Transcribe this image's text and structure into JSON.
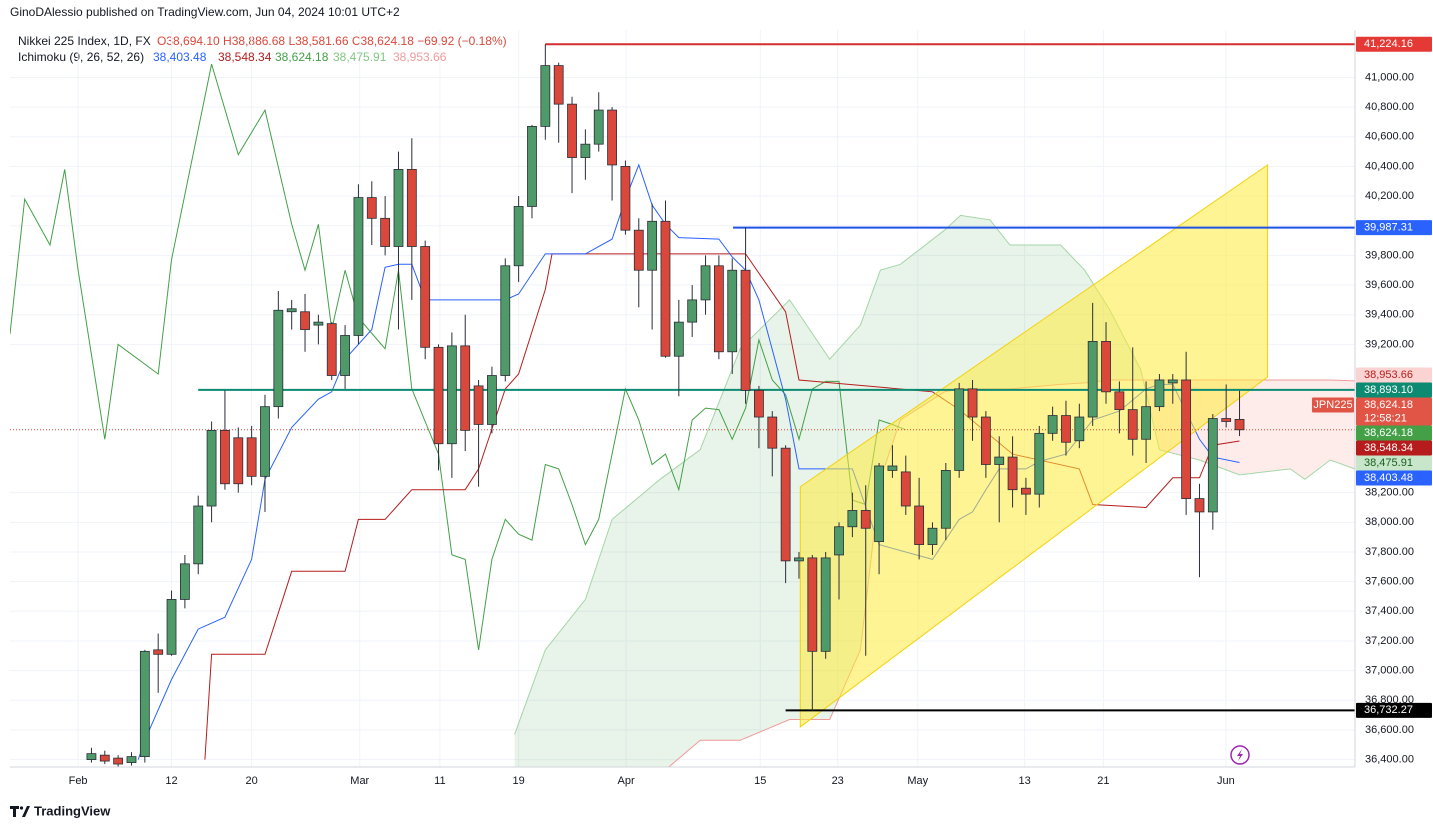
{
  "header": {
    "publisher": "GinoDAlessio published on TradingView.com, Jun 04, 2024 10:01 UTC+2"
  },
  "legend": {
    "symbol": "Nikkei 225 Index, 1D, FX",
    "ohlc": "O38,694.10 H38,886.68 L38,581.66 C38,624.18 −69.92 (−0.18%)",
    "indicator": "Ichimoku (9, 26, 52, 26)",
    "indicator_values": [
      {
        "label": "38,403.48",
        "color": "#2962ff"
      },
      {
        "label": "38,548.34",
        "color": "#b71c1c"
      },
      {
        "label": "38,624.18",
        "color": "#43a047"
      },
      {
        "label": "38,475.91",
        "color": "#81c784"
      },
      {
        "label": "38,953.66",
        "color": "#ef9a9a"
      }
    ]
  },
  "footer": {
    "brand": "TradingView"
  },
  "chart_data": {
    "type": "candlestick",
    "up_color": "#4e9a68",
    "down_color": "#d9483b",
    "grid": true,
    "x": [
      1,
      2,
      3,
      4,
      5,
      6,
      7,
      8,
      9,
      10,
      11,
      12,
      13,
      14,
      15,
      16,
      17,
      18,
      19,
      20,
      21,
      22,
      23,
      24,
      25,
      26,
      27,
      28,
      29,
      30,
      31,
      32,
      33,
      34,
      35,
      36,
      37,
      38,
      39,
      40,
      41,
      42,
      43,
      44,
      45,
      46,
      47,
      48,
      49,
      50,
      51,
      52,
      53,
      54,
      55,
      56,
      57,
      58,
      59,
      60,
      61,
      62,
      63,
      64,
      65,
      66,
      67,
      68,
      69,
      70,
      71,
      72,
      73,
      74,
      75,
      76,
      77,
      78,
      79,
      80,
      81,
      82,
      83,
      84,
      85,
      86,
      87
    ],
    "open": [
      36400,
      36430,
      36410,
      36380,
      36420,
      37140,
      37110,
      37480,
      37720,
      38110,
      38620,
      38570,
      38570,
      38310,
      38780,
      39420,
      39420,
      39330,
      39340,
      38990,
      39260,
      40190,
      40050,
      39860,
      40380,
      39860,
      39180,
      38530,
      39190,
      38920,
      38660,
      38990,
      39730,
      40130,
      40670,
      41080,
      40820,
      40460,
      40550,
      40780,
      40400,
      39970,
      39700,
      40030,
      39120,
      39350,
      39500,
      39730,
      39150,
      39700,
      38890,
      38710,
      38500,
      37740,
      37760,
      37130,
      37780,
      37970,
      38080,
      37870,
      38350,
      38340,
      38110,
      37850,
      37960,
      38350,
      38900,
      38710,
      38390,
      38440,
      38230,
      38190,
      38600,
      38720,
      38550,
      38710,
      39220,
      38880,
      38760,
      38560,
      38780,
      38940,
      38960,
      38160,
      38070,
      38700,
      38694.1
    ],
    "high": [
      36480,
      36460,
      36430,
      36450,
      37140,
      37250,
      37540,
      37780,
      38180,
      38680,
      38890,
      38640,
      38650,
      38860,
      39560,
      39500,
      39540,
      39400,
      39350,
      39330,
      40280,
      40300,
      40200,
      40500,
      40590,
      39900,
      39200,
      39280,
      39400,
      38960,
      39050,
      39780,
      40200,
      40680,
      41224,
      41100,
      40870,
      40650,
      40900,
      40800,
      40440,
      40050,
      40150,
      40170,
      39500,
      39600,
      39800,
      39800,
      39780,
      39990,
      38920,
      38750,
      38520,
      37800,
      37780,
      37800,
      38000,
      38200,
      38250,
      38400,
      38520,
      38450,
      38300,
      38000,
      38400,
      38940,
      38960,
      38750,
      38580,
      38580,
      38300,
      38650,
      38780,
      38820,
      38800,
      39480,
      39350,
      38950,
      39180,
      38950,
      39000,
      39000,
      39150,
      38260,
      38730,
      38930,
      38886.68
    ],
    "low": [
      36380,
      36370,
      36350,
      36360,
      36380,
      36850,
      37100,
      37420,
      37650,
      38000,
      38220,
      38200,
      38250,
      38070,
      38700,
      39300,
      39150,
      39200,
      38960,
      38900,
      39200,
      39870,
      39800,
      39300,
      39500,
      39100,
      38350,
      38300,
      38480,
      38240,
      38600,
      38950,
      39620,
      40050,
      40580,
      40560,
      40220,
      40310,
      40500,
      40170,
      39940,
      39450,
      39300,
      39110,
      38850,
      39250,
      39400,
      39100,
      39000,
      38800,
      38500,
      38310,
      37590,
      37620,
      36730,
      37080,
      37480,
      37900,
      37100,
      37650,
      38300,
      38050,
      37750,
      37780,
      37880,
      38300,
      38550,
      38300,
      38000,
      38100,
      38050,
      38100,
      38550,
      38450,
      38500,
      38650,
      38800,
      38600,
      38450,
      38400,
      38750,
      38800,
      38050,
      37630,
      37950,
      38640,
      38581.66
    ],
    "close": [
      36440,
      36390,
      36370,
      36420,
      37130,
      37110,
      37480,
      37720,
      38110,
      38620,
      38260,
      38260,
      38310,
      38780,
      39430,
      39440,
      39300,
      39350,
      38990,
      39260,
      40190,
      40050,
      39860,
      40380,
      39860,
      39180,
      38530,
      39190,
      38620,
      38660,
      38990,
      39730,
      40130,
      40670,
      41080,
      40820,
      40460,
      40550,
      40780,
      40410,
      39970,
      39700,
      40030,
      39120,
      39350,
      39500,
      39730,
      39150,
      39700,
      38890,
      38710,
      38500,
      37740,
      37760,
      37130,
      37760,
      37970,
      38080,
      37960,
      38380,
      38380,
      38110,
      37850,
      37960,
      38350,
      38900,
      38710,
      38390,
      38440,
      38220,
      38190,
      38600,
      38720,
      38540,
      38710,
      39220,
      38880,
      38760,
      38560,
      38780,
      38960,
      38960,
      38160,
      38070,
      38700,
      38680,
      38624.18
    ],
    "lines": [
      {
        "color": "#43a047",
        "x": [
          -5.1,
          -4,
          -2.1,
          -1,
          0,
          2,
          3,
          6,
          7,
          10,
          12,
          14,
          16,
          17,
          18,
          19,
          20,
          21,
          23,
          24,
          25,
          27,
          28,
          29,
          30,
          31,
          32,
          33,
          34,
          35,
          36,
          37,
          38,
          39,
          41,
          42,
          43,
          44,
          45,
          46,
          47,
          48,
          49,
          50,
          51,
          52,
          53,
          54,
          55,
          56,
          57,
          58,
          59,
          60,
          61,
          62
        ],
        "values": [
          39270,
          40180,
          39870,
          40380,
          39700,
          38560,
          39200,
          39000,
          39770,
          41090,
          40480,
          40780,
          40010,
          39700,
          40010,
          39300,
          39700,
          39380,
          39170,
          39700,
          38900,
          38460,
          37780,
          37750,
          37140,
          37750,
          38020,
          37920,
          37880,
          38390,
          38360,
          38120,
          37850,
          38020,
          38900,
          38690,
          38390,
          38460,
          38220,
          38690,
          38770,
          38760,
          38560,
          38770,
          39230,
          38960,
          38860,
          38560,
          38900,
          38950,
          38950,
          38150,
          38120,
          38690,
          38660,
          38624.18
        ]
      },
      {
        "color": "#b71c1c",
        "x": [
          9.5,
          10,
          14,
          16,
          20,
          21,
          23,
          24,
          25,
          29,
          30,
          32,
          33,
          35,
          35.5,
          50,
          53,
          54,
          64,
          66,
          70,
          75,
          76,
          80,
          82,
          84,
          85,
          87
        ],
        "values": [
          36400,
          37110,
          37110,
          37670,
          37670,
          38020,
          38020,
          38120,
          38220,
          38220,
          38360,
          38900,
          39000,
          39570,
          39810,
          39810,
          39420,
          38960,
          38880,
          38760,
          38460,
          38360,
          38120,
          38100,
          38300,
          38300,
          38520,
          38548.34
        ]
      },
      {
        "color": "#2962ff",
        "x": [
          4.5,
          5,
          7,
          9,
          11,
          13,
          14,
          16,
          18,
          19,
          20,
          22,
          23,
          24,
          25,
          26,
          27,
          32,
          33,
          35,
          36,
          38,
          40,
          41,
          42,
          43,
          44,
          45,
          48,
          49,
          50,
          51,
          53,
          54,
          55,
          58,
          60,
          64,
          66,
          67,
          68,
          69,
          71,
          72,
          74,
          76,
          78,
          80,
          81,
          82,
          84,
          85,
          87
        ],
        "values": [
          36400,
          36530,
          36940,
          37280,
          37360,
          37750,
          38290,
          38640,
          38830,
          38880,
          39100,
          39300,
          39720,
          39740,
          39740,
          39500,
          39500,
          39500,
          39540,
          39810,
          39810,
          39810,
          39910,
          40180,
          40410,
          40140,
          40010,
          39920,
          39910,
          39790,
          39700,
          39500,
          38830,
          38360,
          38360,
          38360,
          37850,
          37750,
          38020,
          38070,
          38220,
          38360,
          38360,
          38410,
          38460,
          38690,
          38750,
          38900,
          38930,
          38930,
          38560,
          38440,
          38403.48
        ]
      }
    ],
    "cloud": {
      "span_a_color": "#a5d6a7",
      "span_b_color": "#ef9a9a",
      "up_fill": "rgba(67,160,71,0.12)",
      "down_fill": "rgba(244,67,54,0.1)",
      "x": [
        32.7,
        35,
        38,
        40,
        43.6,
        46.6,
        49.6,
        53.3,
        56.3,
        58.6,
        60.1,
        61.6,
        64.9,
        66.1,
        68.3,
        69.8,
        73.6,
        75.4,
        77.3,
        79.6,
        81,
        84,
        87,
        90.8,
        91.9,
        93.8,
        95.65
      ],
      "span_a": [
        36570,
        37140,
        37480,
        38020,
        38290,
        38490,
        39170,
        39500,
        39100,
        39330,
        39700,
        39740,
        39970,
        40070,
        40040,
        39870,
        39870,
        39700,
        39430,
        39030,
        38490,
        38420,
        38320,
        38360,
        38290,
        38420,
        38360
      ],
      "span_b": [
        36300,
        36300,
        36300,
        36300,
        36300,
        36530,
        36530,
        36670,
        36670,
        37140,
        38290,
        38690,
        38880,
        38900,
        38900,
        38900,
        38930,
        38940,
        38960,
        38960,
        38960,
        38960,
        38960,
        38960,
        38960,
        38960,
        38953.66
      ]
    },
    "channel": {
      "color": "rgba(255,235,59,0.55)",
      "x": [
        54.1,
        89.1
      ],
      "upper": [
        38240,
        40410
      ],
      "lower": [
        36620,
        38980
      ]
    },
    "hlines": [
      {
        "value": 41224.16,
        "x_start": 35,
        "color": "#d32f2f"
      },
      {
        "value": 39987.31,
        "x_start": 49.06,
        "color": "#1e53e5"
      },
      {
        "value": 38893.1,
        "x_start": 9,
        "color": "#0d8a72"
      },
      {
        "value": 36732.27,
        "x_start": 53,
        "color": "#000000"
      }
    ],
    "price_labels": [
      {
        "value": 41224.16,
        "label": "41,224.16",
        "color": "#e53935",
        "text_color": "#ffffff"
      },
      {
        "value": 39987.31,
        "label": "39,987.31",
        "color": "#2962ff",
        "text_color": "#ffffff"
      },
      {
        "value": 38953.66,
        "label": "38,953.66",
        "color": "#fbd3d3",
        "text_color": "#b71c1c"
      },
      {
        "value": 38893.1,
        "label": "38,893.10",
        "color": "#0d8a72",
        "text_color": "#ffffff"
      },
      {
        "value": 38624.18,
        "label": "38,624.18",
        "color": "#e05545",
        "text_color": "#ffffff",
        "countdown": "12:58:21"
      },
      {
        "value": 38624.18,
        "label": "38,624.18",
        "color": "#43a047",
        "text_color": "#ffffff"
      },
      {
        "value": 38548.34,
        "label": "38,548.34",
        "color": "#b71c1c",
        "text_color": "#ffffff"
      },
      {
        "value": 38475.91,
        "label": "38,475.91",
        "color": "#c8e6c9",
        "text_color": "#1b5e20"
      },
      {
        "value": 38403.48,
        "label": "38,403.48",
        "color": "#2962ff",
        "text_color": "#ffffff"
      },
      {
        "value": 36732.27,
        "label": "36,732.27",
        "color": "#000000",
        "text_color": "#ffffff"
      }
    ],
    "symbol_tag": "JPN225",
    "xlim": [
      -5.1,
      95.65
    ],
    "ylim": [
      36350,
      41320
    ],
    "xticks": [
      {
        "value": 0,
        "label": "Feb"
      },
      {
        "value": 7,
        "label": "12"
      },
      {
        "value": 13,
        "label": "20"
      },
      {
        "value": 21.1,
        "label": "Mar"
      },
      {
        "value": 27.1,
        "label": "11"
      },
      {
        "value": 33,
        "label": "19"
      },
      {
        "value": 41.05,
        "label": "Apr"
      },
      {
        "value": 51.1,
        "label": "15"
      },
      {
        "value": 56.9,
        "label": "23"
      },
      {
        "value": 62.9,
        "label": "May"
      },
      {
        "value": 70.9,
        "label": "13"
      },
      {
        "value": 76.8,
        "label": "21"
      },
      {
        "value": 85.98,
        "label": "Jun"
      }
    ],
    "yticks": [
      {
        "value": 41000,
        "label": "41,000.00"
      },
      {
        "value": 40800,
        "label": "40,800.00"
      },
      {
        "value": 40600,
        "label": "40,600.00"
      },
      {
        "value": 40400,
        "label": "40,400.00"
      },
      {
        "value": 40200,
        "label": "40,200.00"
      },
      {
        "value": 40000,
        "label": "40,000.00"
      },
      {
        "value": 39800,
        "label": "39,800.00"
      },
      {
        "value": 39600,
        "label": "39,600.00"
      },
      {
        "value": 39400,
        "label": "39,400.00"
      },
      {
        "value": 39200,
        "label": "39,200.00"
      },
      {
        "value": 38200,
        "label": "38,200.00"
      },
      {
        "value": 38000,
        "label": "38,000.00"
      },
      {
        "value": 37800,
        "label": "37,800.00"
      },
      {
        "value": 37600,
        "label": "37,600.00"
      },
      {
        "value": 37400,
        "label": "37,400.00"
      },
      {
        "value": 37200,
        "label": "37,200.00"
      },
      {
        "value": 37000,
        "label": "37,000.00"
      },
      {
        "value": 36800,
        "label": "36,800.00"
      },
      {
        "value": 36600,
        "label": "36,600.00"
      },
      {
        "value": 36400,
        "label": "36,400.00"
      }
    ]
  }
}
